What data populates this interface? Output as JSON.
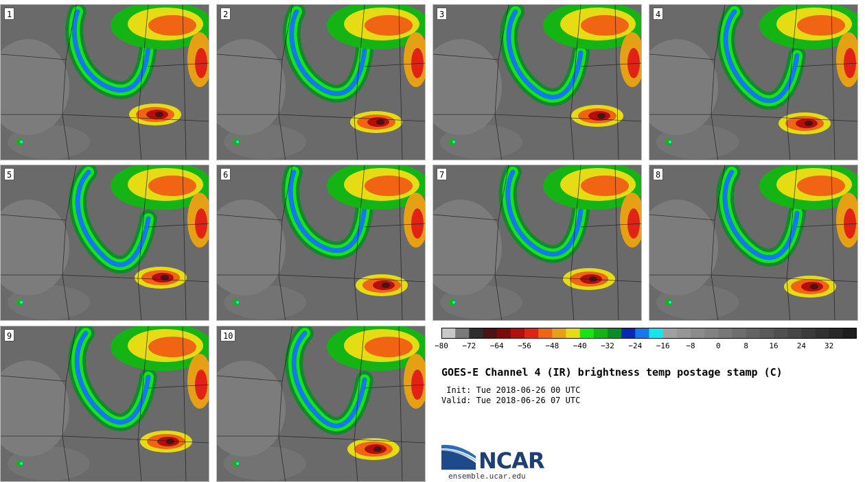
{
  "members": [
    {
      "label": "1"
    },
    {
      "label": "2"
    },
    {
      "label": "3"
    },
    {
      "label": "4"
    },
    {
      "label": "5"
    },
    {
      "label": "6"
    },
    {
      "label": "7"
    },
    {
      "label": "8"
    },
    {
      "label": "9"
    },
    {
      "label": "10"
    }
  ],
  "colorbar": {
    "colors": [
      "#c8c8c8",
      "#7a7a7a",
      "#2e2e2e",
      "#4a1414",
      "#7a0c0c",
      "#b40e0e",
      "#e12214",
      "#f06414",
      "#e6a014",
      "#e6dc14",
      "#14e614",
      "#14b414",
      "#0a8c28",
      "#0a28b4",
      "#1478f0",
      "#14e6f0",
      "#a0a0a0",
      "#969696",
      "#8c8c8c",
      "#828282",
      "#787878",
      "#6e6e6e",
      "#646464",
      "#5a5a5a",
      "#505050",
      "#464646",
      "#3c3c3c",
      "#323232",
      "#282828",
      "#1e1e1e"
    ],
    "ticks": [
      "−80",
      "−72",
      "−64",
      "−56",
      "−48",
      "−40",
      "−32",
      "−24",
      "−16",
      "−8",
      "0",
      "8",
      "16",
      "24",
      "32"
    ]
  },
  "title": "GOES-E Channel 4 (IR) brightness temp postage stamp (C)",
  "init_text": " Init: Tue 2018-06-26 00 UTC",
  "valid_text": "Valid: Tue 2018-06-26 07 UTC",
  "logo": {
    "text": "NCAR",
    "site": "ensemble.ucar.edu"
  }
}
